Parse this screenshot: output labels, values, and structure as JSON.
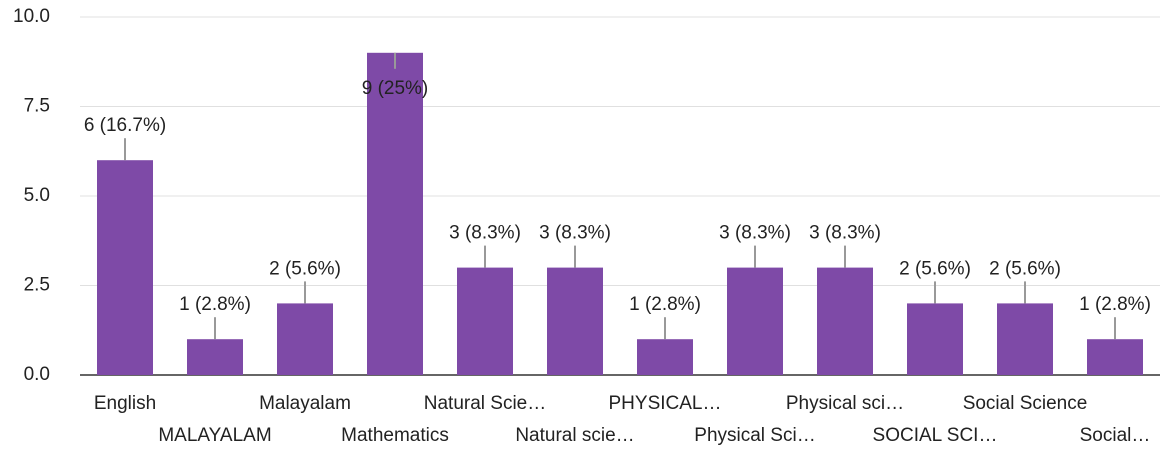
{
  "chart_data": {
    "type": "bar",
    "categories": [
      "English",
      "MALAYALAM",
      "Malayalam",
      "Mathematics",
      "Natural Scie…",
      "Natural scie…",
      "PHYSICAL…",
      "Physical Sci…",
      "Physical sci…",
      "SOCIAL SCI…",
      "Social Science",
      "Social…"
    ],
    "values": [
      6,
      1,
      2,
      9,
      3,
      3,
      1,
      3,
      3,
      2,
      2,
      1
    ],
    "value_labels": [
      "6 (16.7%)",
      "1 (2.8%)",
      "2 (5.6%)",
      "9 (25%)",
      "3 (8.3%)",
      "3 (8.3%)",
      "1 (2.8%)",
      "3 (8.3%)",
      "3 (8.3%)",
      "2 (5.6%)",
      "2 (5.6%)",
      "1 (2.8%)"
    ],
    "color": "#7e4aa7",
    "ylim": [
      0,
      10
    ],
    "yticks": [
      {
        "value": 0,
        "label": "0.0"
      },
      2.5,
      {
        "value": 5,
        "label": "5.0"
      },
      7.5,
      {
        "value": 10,
        "label": "10.0"
      }
    ],
    "grid": true
  }
}
